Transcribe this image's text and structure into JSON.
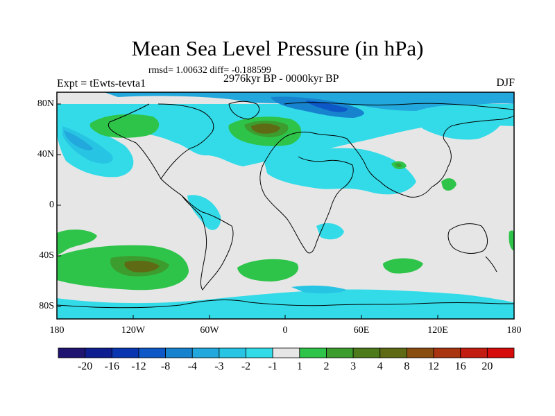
{
  "title": "Mean Sea Level Pressure (in hPa)",
  "stats": "rmsd= 1.00632 diff= -0.188599",
  "experiment": "Expt = tEwts-tevta1",
  "period": "2976kyr BP - 0000kyr BP",
  "season": "DJF",
  "lat_labels": [
    "80N",
    "40N",
    "0",
    "40S",
    "80S"
  ],
  "lon_labels": [
    "180",
    "120W",
    "60W",
    "0",
    "60E",
    "120E",
    "180"
  ],
  "colorbar": {
    "labels": [
      "-20",
      "-16",
      "-12",
      "-8",
      "-4",
      "-3",
      "-2",
      "-1",
      "1",
      "2",
      "3",
      "4",
      "8",
      "12",
      "16",
      "20"
    ],
    "colors": [
      "#1f1470",
      "#0e1d8f",
      "#0a35b0",
      "#0d57c6",
      "#1783cf",
      "#22a8dc",
      "#27c4e3",
      "#33dbe8",
      "#e6e6e6",
      "#2ec44a",
      "#3c9c2e",
      "#4d7a1a",
      "#5f6a15",
      "#8a4d10",
      "#a83410",
      "#c31c10",
      "#d60b0b"
    ]
  }
}
